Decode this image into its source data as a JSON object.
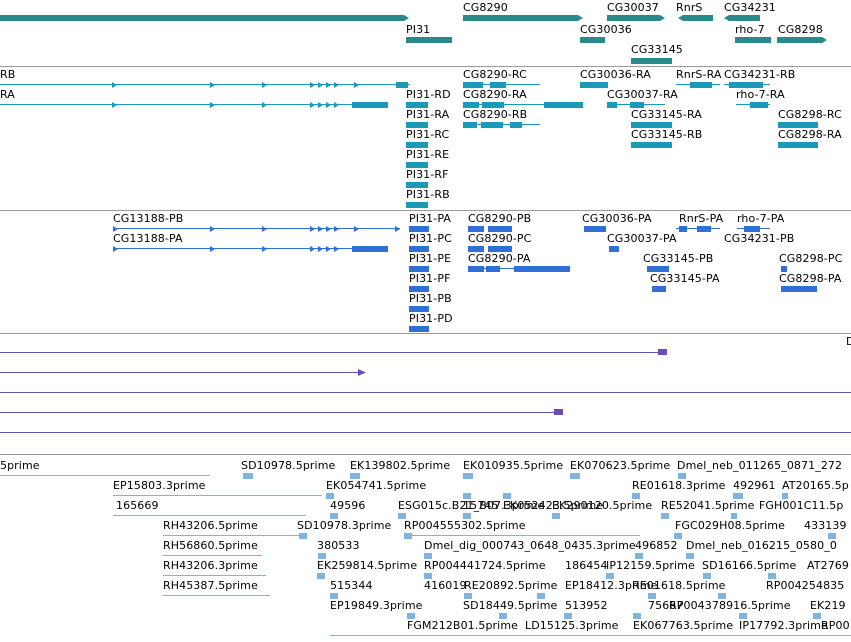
{
  "colors": {
    "gene": "#2a8a8a",
    "transcript_ncbi": "#1b9ab8",
    "transcript_flybase": "#2f6fd6",
    "est": "#6a4fb0",
    "cdna": "#7fb4e0",
    "border": "#9a9a9a"
  },
  "tracks": {
    "genes": {
      "labels": [
        "PI31",
        "CG8290",
        "CG30037",
        "RnrS",
        "CG34231",
        "CG30036",
        "rho-7",
        "CG8298",
        "CG33145"
      ]
    },
    "transcripts_a": {
      "labels": [
        "RB",
        "RA",
        "CG8290-RC",
        "CG30036-RA",
        "RnrS-RA",
        "CG34231-RB",
        "PI31-RD",
        "CG8290-RA",
        "CG30037-RA",
        "rho-7-RA",
        "PI31-RA",
        "CG8290-RB",
        "CG33145-RA",
        "CG8298-RC",
        "PI31-RC",
        "CG33145-RB",
        "CG8298-RA",
        "PI31-RE",
        "PI31-RF",
        "PI31-RB"
      ]
    },
    "transcripts_b": {
      "labels": [
        "CG13188-PB",
        "PI31-PA",
        "CG8290-PB",
        "CG30036-PA",
        "RnrS-PA",
        "rho-7-PA",
        "CG13188-PA",
        "PI31-PC",
        "CG8290-PC",
        "CG30037-PA",
        "CG34231-PB",
        "PI31-PE",
        "CG8290-PA",
        "CG33145-PB",
        "CG8298-PC",
        "PI31-PF",
        "CG33145-PA",
        "CG8298-PA",
        "PI31-PB",
        "PI31-PD"
      ]
    },
    "est": {
      "labels": [
        "D"
      ]
    },
    "cdna": {
      "labels": [
        "5prime",
        "SD10978.5prime",
        "EK139802.5prime",
        "EK010935.5prime",
        "EK070623.5prime",
        "Dmel_neb_011265_0871_272",
        "EP15803.3prime",
        "EK054741.5prime",
        "RE01618.3prime",
        "492961",
        "AT20165.5p",
        "165669",
        "49596",
        "ESG015c.B21_B07.3prime",
        "15745",
        "EK052423.5prime",
        "EK290120.5prime",
        "RE52041.5prime",
        "FGH001C11.5p",
        "RH43206.5prime",
        "SD10978.3prime",
        "RP004555302.5prime",
        "FGC029H08.5prime",
        "433139",
        "RH56860.5prime",
        "380533",
        "Dmel_dig_000743_0648_0435.3prime",
        "496852",
        "Dmel_neb_016215_0580_0",
        "RH43206.3prime",
        "EK259814.5prime",
        "RP004441724.5prime",
        "186454",
        "IP12159.5prime",
        "SD16166.5prime",
        "AT2769",
        "RH45387.5prime",
        "515344",
        "416019",
        "RE20892.5prime",
        "EP18412.3prime",
        "RE01618.5prime",
        "RP004254835",
        "EP19849.3prime",
        "SD18449.5prime",
        "513952",
        "75667",
        "RP004378916.5prime",
        "EK219",
        "FGM212B01.5prime",
        "LD15125.3prime",
        "EK067763.5prime",
        "IP17792.3prime",
        "RP00"
      ]
    }
  }
}
